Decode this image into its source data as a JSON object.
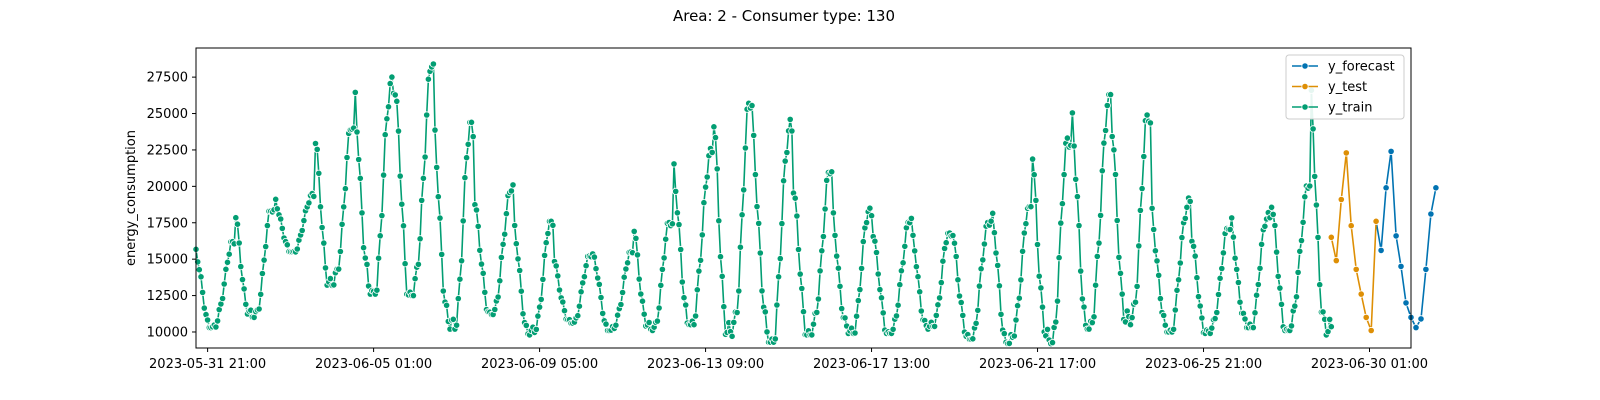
{
  "chart_data": {
    "type": "line",
    "title": "Area: 2 - Consumer type: 130",
    "xlabel": "",
    "ylabel": "energy_consumption",
    "xlim": [
      "2023-05-31 14:00",
      "2023-07-01 02:00"
    ],
    "ylim": [
      8900,
      29500
    ],
    "x_ticks": [
      "2023-05-31 21:00",
      "2023-06-05 01:00",
      "2023-06-09 05:00",
      "2023-06-13 09:00",
      "2023-06-17 13:00",
      "2023-06-21 17:00",
      "2023-06-25 21:00",
      "2023-06-30 01:00"
    ],
    "y_ticks": [
      10000,
      12500,
      15000,
      17500,
      20000,
      22500,
      25000,
      27500
    ],
    "grid": false,
    "legend_position": "top-right",
    "marker": "circle",
    "series": [
      {
        "name": "y_forecast",
        "color": "#0173b2",
        "x": [
          "2023-06-30 05:00",
          "2023-06-30 08:00",
          "2023-06-30 11:00",
          "2023-06-30 14:00",
          "2023-06-30 17:00",
          "2023-06-30 20:00",
          "2023-06-30 23:00",
          "2023-07-01 02:00",
          "2023-07-01 05:00",
          "2023-07-01 08:00",
          "2023-07-01 11:00",
          "2023-07-01 14:00",
          "2023-07-01 17:00"
        ],
        "values": [
          17600,
          15600,
          19900,
          22400,
          16600,
          14500,
          12000,
          11000,
          10300,
          10900,
          14300,
          18100,
          19900
        ]
      },
      {
        "name": "y_test",
        "color": "#de8f05",
        "x": [
          "2023-06-29 02:00",
          "2023-06-29 05:00",
          "2023-06-29 08:00",
          "2023-06-29 11:00",
          "2023-06-29 14:00",
          "2023-06-29 17:00",
          "2023-06-29 20:00",
          "2023-06-29 23:00",
          "2023-06-30 02:00",
          "2023-06-30 05:00"
        ],
        "values": [
          16500,
          14900,
          19100,
          22300,
          17300,
          14300,
          12600,
          11000,
          10100,
          17600
        ]
      },
      {
        "name": "y_train",
        "color": "#029e73",
        "x_start": "2023-05-31 14:00",
        "x_step_hours": 1,
        "x_end": "2023-06-29 02:00",
        "daily_peaks": [
          16200,
          18500,
          19500,
          24000,
          27500,
          28400,
          24400,
          20100,
          17600,
          15500,
          15500,
          17700,
          22600,
          25700,
          24600,
          21000,
          18500,
          17800,
          16800,
          17900,
          18600,
          23600,
          26300,
          24900,
          19200,
          17100,
          18200,
          20100,
          27000,
          24800,
          22500,
          22700,
          18200
        ],
        "daily_troughs": [
          10300,
          11000,
          15500,
          13200,
          12600,
          12500,
          10200,
          11200,
          9800,
          10600,
          10100,
          10100,
          10500,
          9700,
          9300,
          9800,
          9900,
          9900,
          10200,
          9500,
          9200,
          9200,
          10200,
          10500,
          10000,
          9900,
          10300,
          10100,
          9800,
          10100,
          10100,
          10500,
          10000
        ]
      }
    ]
  }
}
